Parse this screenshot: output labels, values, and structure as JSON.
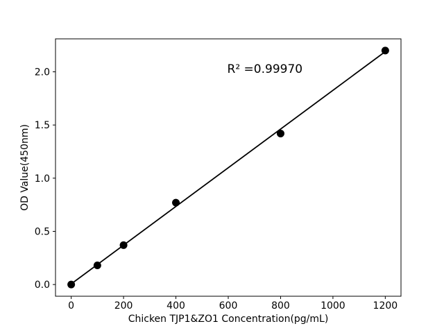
{
  "chart_data": {
    "type": "scatter",
    "title": "",
    "xlabel": "Chicken TJP1&ZO1 Concentration(pg/mL)",
    "ylabel": "OD Value(450nm)",
    "x": [
      0,
      100,
      200,
      400,
      800,
      1200
    ],
    "y": [
      0.0,
      0.18,
      0.37,
      0.77,
      1.42,
      2.2
    ],
    "fit_line": {
      "slope": 0.00182,
      "intercept": 0.006,
      "x_start": 0,
      "x_end": 1200
    },
    "annotation": {
      "text": "R² =0.99970",
      "x": 740,
      "y": 2.03
    },
    "xtick_labels": [
      "0",
      "200",
      "400",
      "600",
      "800",
      "1000",
      "1200"
    ],
    "ytick_labels": [
      "0.0",
      "0.5",
      "1.0",
      "1.5",
      "2.0"
    ],
    "xlim": [
      -60,
      1260
    ],
    "ylim": [
      -0.11,
      2.31
    ],
    "grid": false,
    "legend_position": "none",
    "marker_color": "#000000",
    "line_color": "#000000",
    "axis_color": "#000000",
    "background_color": "#ffffff"
  }
}
